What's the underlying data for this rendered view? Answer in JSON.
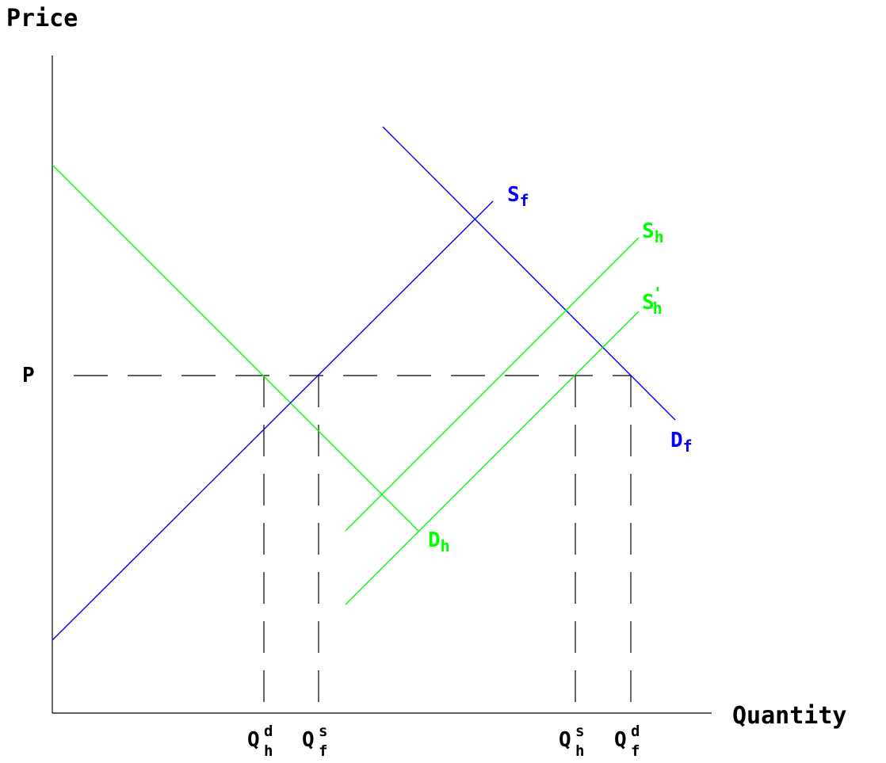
{
  "axes": {
    "y_title": "Price",
    "x_title": "Quantity",
    "price_label": "P"
  },
  "colors": {
    "foreign": "#0000ff",
    "home": "#00ff00",
    "axis": "#000000",
    "guide": "#000000"
  },
  "curves": {
    "supply_foreign": {
      "main": "S",
      "sub": "f"
    },
    "supply_home": {
      "main": "S",
      "sub": "h"
    },
    "supply_home_shifted": {
      "main": "S",
      "sub": "h",
      "prime": "'"
    },
    "demand_foreign": {
      "main": "D",
      "sub": "f"
    },
    "demand_home": {
      "main": "D",
      "sub": "h"
    }
  },
  "quantity_ticks": [
    {
      "main": "Q",
      "sup": "d",
      "sub": "h"
    },
    {
      "main": "Q",
      "sup": "s",
      "sub": "f"
    },
    {
      "main": "Q",
      "sup": "s",
      "sub": "h"
    },
    {
      "main": "Q",
      "sup": "d",
      "sub": "f"
    }
  ]
}
